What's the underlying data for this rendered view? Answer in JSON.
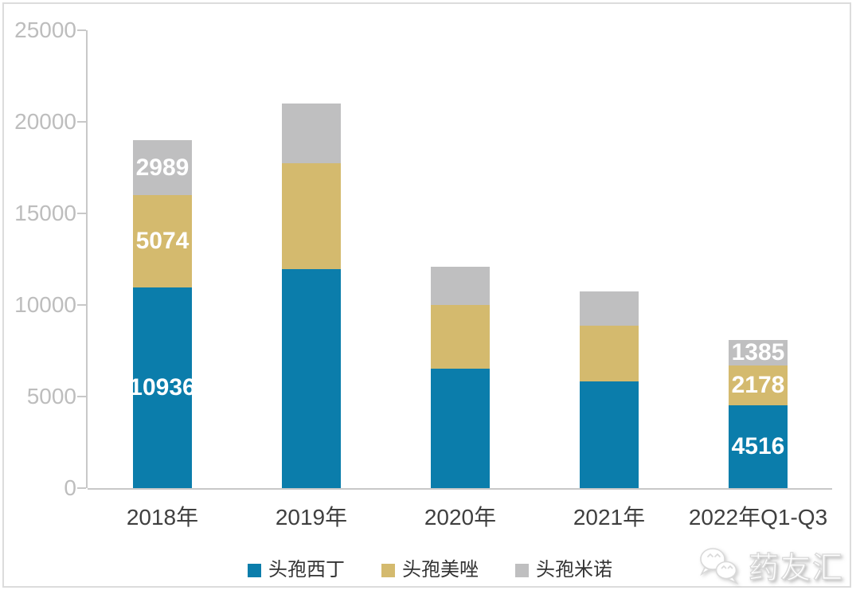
{
  "chart_data": {
    "type": "bar",
    "stacked": true,
    "title": "",
    "categories": [
      "2018年",
      "2019年",
      "2020年",
      "2021年",
      "2022年Q1-Q3"
    ],
    "series": [
      {
        "name": "头孢西丁",
        "color": "#0b7dab",
        "values": [
          10936,
          11950,
          6520,
          5830,
          4516
        ]
      },
      {
        "name": "头孢美唑",
        "color": "#d4ba6e",
        "values": [
          5074,
          5800,
          3480,
          3040,
          2178
        ]
      },
      {
        "name": "头孢米诺",
        "color": "#bfbfc0",
        "values": [
          2989,
          3250,
          2090,
          1870,
          1385
        ]
      }
    ],
    "data_labels": {
      "0": [
        "10936",
        "5074",
        "2989"
      ],
      "4": [
        "4516",
        "2178",
        "1385"
      ]
    },
    "ylim": [
      0,
      25000
    ],
    "yticks": [
      0,
      5000,
      10000,
      15000,
      20000,
      25000
    ],
    "ytick_labels": [
      "0",
      "5000",
      "10000",
      "15000",
      "20000",
      "25000"
    ],
    "xlabel": "",
    "ylabel": "",
    "grid": false,
    "legend_position": "bottom"
  },
  "watermark": {
    "text": "药友汇",
    "icon": "wechat-bubbles-icon"
  },
  "colors": {
    "series_blue": "#0b7dab",
    "series_gold": "#d4ba6e",
    "series_gray": "#bfbfc0",
    "axis_line": "#c8c8c8",
    "ytick_label": "#bdbdbd",
    "xtick_label": "#3f3f3f",
    "bar_label": "#ffffff",
    "frame_border": "#dcdcdc",
    "legend_text": "#333333"
  }
}
